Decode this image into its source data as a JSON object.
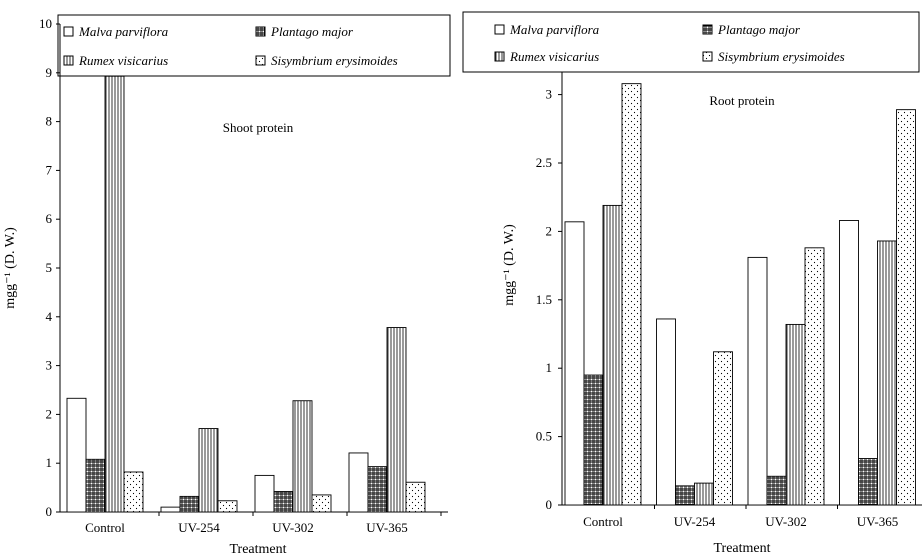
{
  "legend": {
    "malva": "Malva parviflora",
    "plantago": "Plantago major",
    "rumex": "Rumex visicarius",
    "sisymbrium": "Sisymbrium erysimoides"
  },
  "pattern_colors": {
    "stroke": "#000000",
    "fill": "#ffffff"
  },
  "chart_data": [
    {
      "type": "bar",
      "title": "Shoot protein",
      "xlabel": "Treatment",
      "ylabel": "mgg⁻¹ (D. W.)",
      "ylim": [
        0,
        10
      ],
      "yticks": [
        "0",
        "1",
        "2",
        "3",
        "4",
        "5",
        "6",
        "7",
        "8",
        "9",
        "10"
      ],
      "categories": [
        "Control",
        "UV-254",
        "UV-302",
        "UV-365"
      ],
      "series": [
        {
          "name": "Malva parviflora",
          "values": [
            2.33,
            0.1,
            0.75,
            1.21
          ]
        },
        {
          "name": "Plantago major",
          "values": [
            1.08,
            0.32,
            0.42,
            0.93
          ]
        },
        {
          "name": "Rumex visicarius",
          "values": [
            8.93,
            1.71,
            2.28,
            3.78
          ]
        },
        {
          "name": "Sisymbrium erysimoides",
          "values": [
            0.82,
            0.23,
            0.35,
            0.61
          ]
        }
      ],
      "grid": false,
      "legend_position": "top"
    },
    {
      "type": "bar",
      "title": "Root protein",
      "xlabel": "Treatment",
      "ylabel": "mgg⁻¹ (D. W.)",
      "ylim": [
        0,
        3.2
      ],
      "yticks": [
        "0",
        "0.5",
        "1",
        "1.5",
        "2",
        "2.5",
        "3"
      ],
      "categories": [
        "Control",
        "UV-254",
        "UV-302",
        "UV-365"
      ],
      "series": [
        {
          "name": "Malva parviflora",
          "values": [
            2.07,
            1.36,
            1.81,
            2.08
          ]
        },
        {
          "name": "Plantago major",
          "values": [
            0.95,
            0.14,
            0.21,
            0.34
          ]
        },
        {
          "name": "Rumex visicarius",
          "values": [
            2.19,
            0.16,
            1.32,
            1.93
          ]
        },
        {
          "name": "Sisymbrium erysimoides",
          "values": [
            3.08,
            1.12,
            1.88,
            2.89
          ]
        }
      ],
      "grid": false,
      "legend_position": "top"
    }
  ]
}
